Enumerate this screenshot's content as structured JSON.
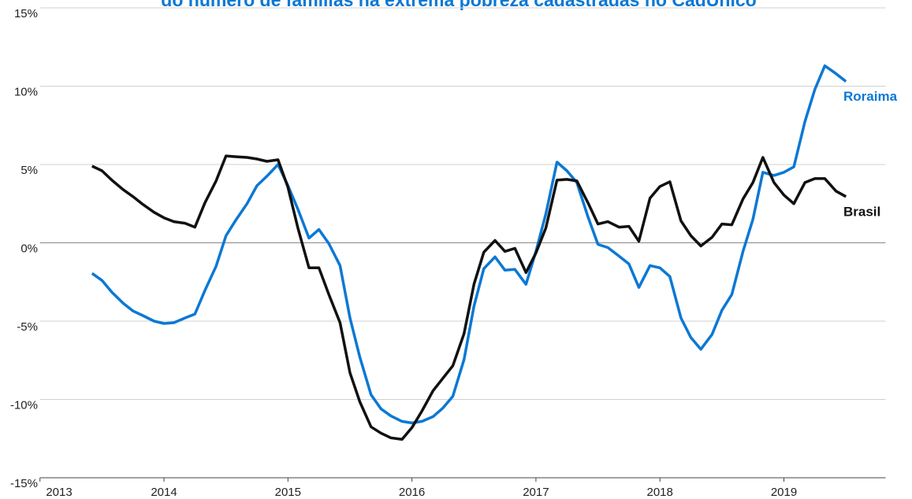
{
  "chart_data": {
    "type": "line",
    "title": "do número de famílias na extrema pobreza cadastradas no CadÚnico",
    "x": [
      2013.42,
      2013.5,
      2013.58,
      2013.67,
      2013.75,
      2013.83,
      2013.92,
      2014.0,
      2014.08,
      2014.17,
      2014.25,
      2014.33,
      2014.42,
      2014.5,
      2014.58,
      2014.67,
      2014.75,
      2014.83,
      2014.92,
      2015.0,
      2015.08,
      2015.17,
      2015.25,
      2015.33,
      2015.42,
      2015.5,
      2015.58,
      2015.67,
      2015.75,
      2015.83,
      2015.92,
      2016.0,
      2016.08,
      2016.17,
      2016.25,
      2016.33,
      2016.42,
      2016.5,
      2016.58,
      2016.67,
      2016.75,
      2016.83,
      2016.92,
      2017.0,
      2017.08,
      2017.17,
      2017.25,
      2017.33,
      2017.42,
      2017.5,
      2017.58,
      2017.67,
      2017.75,
      2017.83,
      2017.92,
      2018.0,
      2018.08,
      2018.17,
      2018.25,
      2018.33,
      2018.42,
      2018.5,
      2018.58,
      2018.67,
      2018.75,
      2018.83,
      2018.92,
      2019.0,
      2019.08,
      2019.17,
      2019.25,
      2019.33,
      2019.42,
      2019.5
    ],
    "series": [
      {
        "name": "Roraima",
        "color": "#0b78d4",
        "values": [
          -1.95,
          -2.4,
          -3.15,
          -3.85,
          -4.35,
          -4.65,
          -5.0,
          -5.15,
          -5.1,
          -4.8,
          -4.55,
          -3.05,
          -1.5,
          0.45,
          1.45,
          2.5,
          3.65,
          4.25,
          5.0,
          3.65,
          2.15,
          0.3,
          0.85,
          -0.05,
          -1.45,
          -4.8,
          -7.3,
          -9.7,
          -10.6,
          -11.05,
          -11.4,
          -11.5,
          -11.4,
          -11.1,
          -10.55,
          -9.8,
          -7.45,
          -4.05,
          -1.65,
          -0.9,
          -1.75,
          -1.7,
          -2.65,
          -0.55,
          1.85,
          5.15,
          4.6,
          3.85,
          1.65,
          -0.1,
          -0.3,
          -0.85,
          -1.35,
          -2.85,
          -1.45,
          -1.6,
          -2.15,
          -4.8,
          -6.05,
          -6.8,
          -5.85,
          -4.3,
          -3.3,
          -0.55,
          1.5,
          4.5,
          4.3,
          4.5,
          4.85,
          7.75,
          9.8,
          11.3,
          10.8,
          10.3
        ]
      },
      {
        "name": "Brasil",
        "color": "#111111",
        "values": [
          4.9,
          4.6,
          4.0,
          3.4,
          2.95,
          2.45,
          1.95,
          1.6,
          1.35,
          1.25,
          1.0,
          2.55,
          3.95,
          5.55,
          5.5,
          5.45,
          5.35,
          5.2,
          5.3,
          3.55,
          0.95,
          -1.6,
          -1.6,
          -3.3,
          -5.1,
          -8.3,
          -10.15,
          -11.75,
          -12.15,
          -12.45,
          -12.55,
          -11.8,
          -10.75,
          -9.45,
          -8.65,
          -7.85,
          -5.8,
          -2.65,
          -0.6,
          0.15,
          -0.55,
          -0.35,
          -1.9,
          -0.65,
          0.95,
          4.0,
          4.05,
          3.95,
          2.55,
          1.2,
          1.35,
          1.0,
          1.05,
          0.1,
          2.85,
          3.6,
          3.9,
          1.4,
          0.45,
          -0.2,
          0.35,
          1.2,
          1.15,
          2.8,
          3.85,
          5.45,
          3.85,
          3.05,
          2.5,
          3.85,
          4.1,
          4.1,
          3.3,
          2.95
        ]
      }
    ],
    "xlim": [
      2013,
      2019.82
    ],
    "xticks": [
      2013,
      2014,
      2015,
      2016,
      2017,
      2018,
      2019
    ],
    "ylim": [
      -15,
      15
    ],
    "yticks": [
      {
        "value": -15,
        "label": "-15%"
      },
      {
        "value": -10,
        "label": "-10%"
      },
      {
        "value": -5,
        "label": "-5%"
      },
      {
        "value": 0,
        "label": "0%"
      },
      {
        "value": 5,
        "label": "5%"
      },
      {
        "value": 10,
        "label": "10%"
      },
      {
        "value": 15,
        "label": "15%"
      }
    ],
    "grid": true
  }
}
